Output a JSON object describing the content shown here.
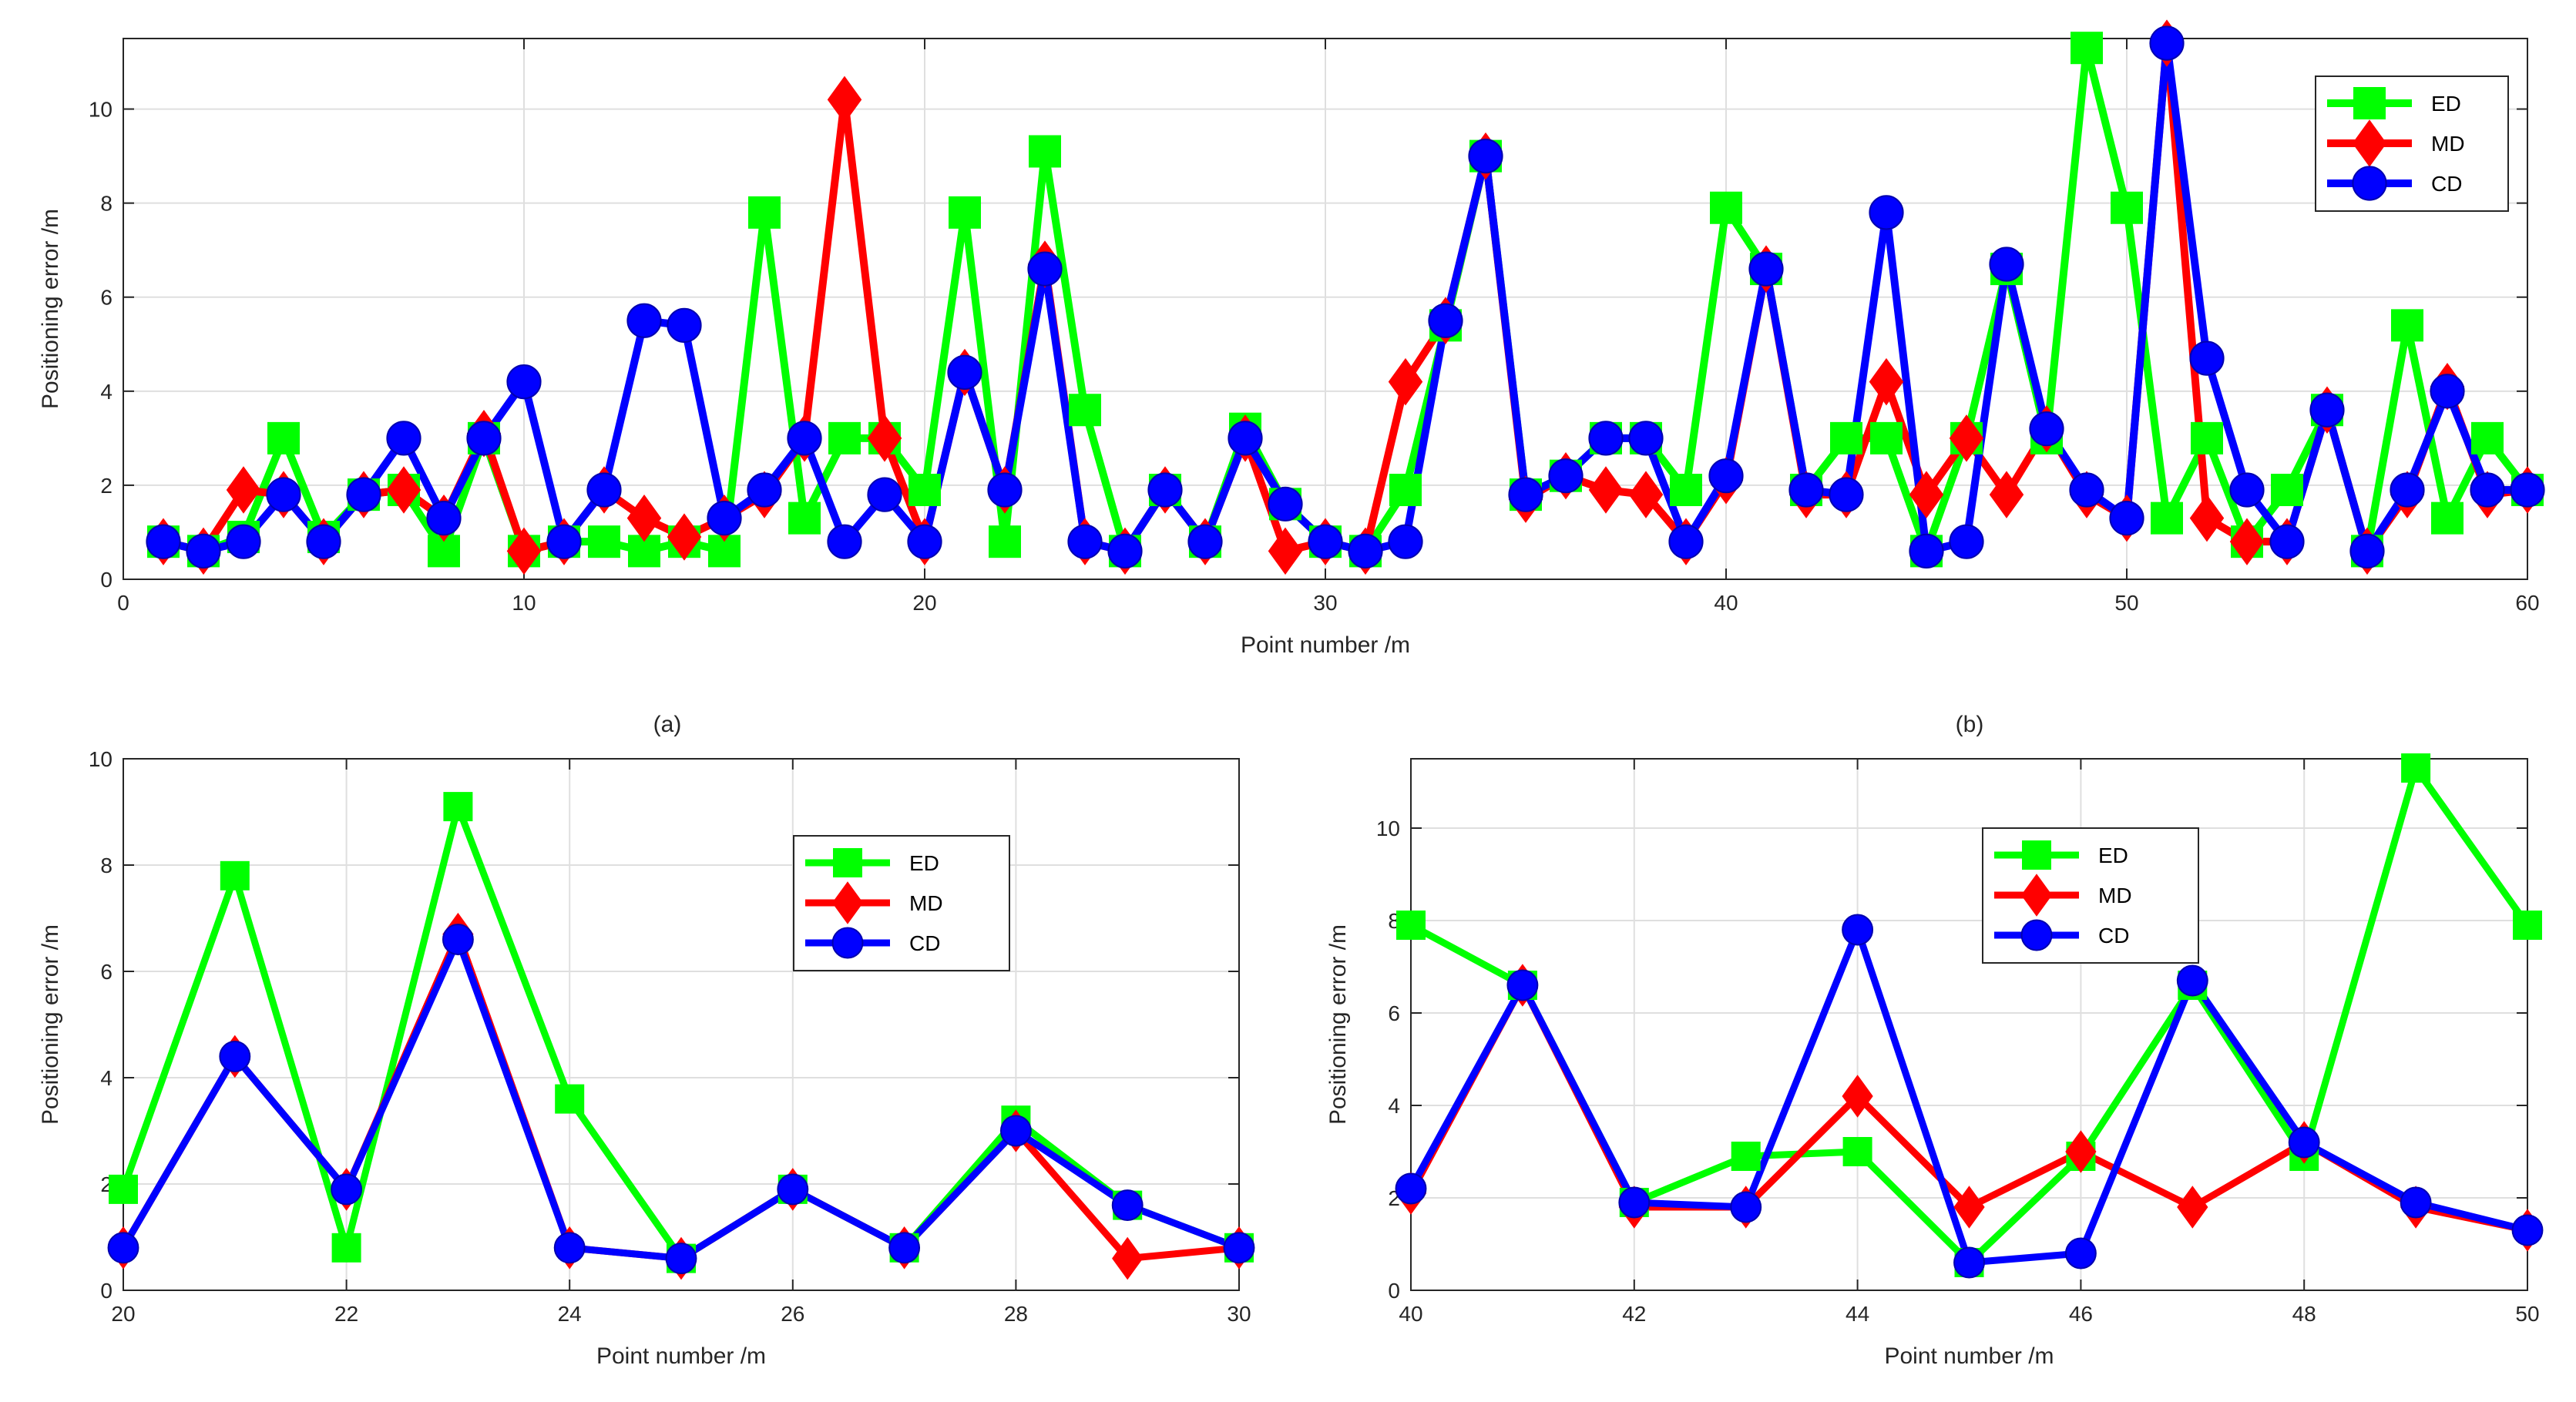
{
  "chart_data": [
    {
      "type": "line",
      "panel": "top",
      "title": "",
      "xlabel": "Point number /m",
      "ylabel": "Positioning error /m",
      "xlim": [
        0,
        60
      ],
      "ylim": [
        0,
        11.5
      ],
      "xticks": [
        0,
        10,
        20,
        30,
        40,
        50,
        60
      ],
      "yticks": [
        0,
        2,
        4,
        6,
        8,
        10
      ],
      "grid": true,
      "legend": "top-right",
      "x": [
        1,
        2,
        3,
        4,
        5,
        6,
        7,
        8,
        9,
        10,
        11,
        12,
        13,
        14,
        15,
        16,
        17,
        18,
        19,
        20,
        21,
        22,
        23,
        24,
        25,
        26,
        27,
        28,
        29,
        30,
        31,
        32,
        33,
        34,
        35,
        36,
        37,
        38,
        39,
        40,
        41,
        42,
        43,
        44,
        45,
        46,
        47,
        48,
        49,
        50,
        51,
        52,
        53,
        54,
        55,
        56,
        57,
        58,
        59,
        60
      ],
      "series": [
        {
          "name": "ED",
          "color": "#00ff00",
          "marker": "square",
          "values": [
            0.8,
            0.6,
            0.9,
            3.0,
            0.9,
            1.8,
            1.9,
            0.6,
            3.0,
            0.6,
            0.8,
            0.8,
            0.6,
            0.8,
            0.6,
            7.8,
            1.3,
            3.0,
            3.0,
            1.9,
            7.8,
            0.8,
            9.1,
            3.6,
            0.6,
            1.9,
            0.8,
            3.2,
            1.6,
            0.8,
            0.6,
            1.9,
            5.4,
            9.0,
            1.8,
            2.2,
            3.0,
            3.0,
            1.9,
            7.9,
            6.6,
            1.9,
            3.0,
            3.0,
            0.6,
            3.0,
            6.6,
            3.0,
            11.3,
            7.9,
            1.3,
            3.0,
            0.8,
            1.9,
            3.6,
            0.6,
            5.4,
            1.3,
            3.0,
            1.9
          ]
        },
        {
          "name": "MD",
          "color": "#ff0000",
          "marker": "diamond",
          "values": [
            0.8,
            0.6,
            1.9,
            1.8,
            0.8,
            1.8,
            1.9,
            1.3,
            3.1,
            0.6,
            0.8,
            1.9,
            1.3,
            0.9,
            1.3,
            1.8,
            3.0,
            10.2,
            3.0,
            0.8,
            4.4,
            1.9,
            6.7,
            0.8,
            0.6,
            1.9,
            0.8,
            3.0,
            0.6,
            0.8,
            0.6,
            4.2,
            5.5,
            9.0,
            1.7,
            2.2,
            1.9,
            1.8,
            0.8,
            2.1,
            6.6,
            1.8,
            1.8,
            4.2,
            1.8,
            3.0,
            1.8,
            3.2,
            1.8,
            1.3,
            11.4,
            1.3,
            0.8,
            0.8,
            3.6,
            0.6,
            1.8,
            4.1,
            1.8,
            1.9
          ]
        },
        {
          "name": "CD",
          "color": "#0000ff",
          "marker": "circle",
          "values": [
            0.8,
            0.6,
            0.8,
            1.8,
            0.8,
            1.8,
            3.0,
            1.3,
            3.0,
            4.2,
            0.8,
            1.9,
            5.5,
            5.4,
            1.3,
            1.9,
            3.0,
            0.8,
            1.8,
            0.8,
            4.4,
            1.9,
            6.6,
            0.8,
            0.6,
            1.9,
            0.8,
            3.0,
            1.6,
            0.8,
            0.6,
            0.8,
            5.5,
            9.0,
            1.8,
            2.2,
            3.0,
            3.0,
            0.8,
            2.2,
            6.6,
            1.9,
            1.8,
            7.8,
            0.6,
            0.8,
            6.7,
            3.2,
            1.9,
            1.3,
            11.4,
            4.7,
            1.9,
            0.8,
            3.6,
            0.6,
            1.9,
            4.0,
            1.9,
            1.9
          ]
        }
      ]
    },
    {
      "type": "line",
      "panel": "bottom-left",
      "caption": "(a)",
      "title": "",
      "xlabel": "Point number /m",
      "ylabel": "Positioning error /m",
      "xlim": [
        20,
        30
      ],
      "ylim": [
        0,
        10
      ],
      "xticks": [
        20,
        22,
        24,
        26,
        28,
        30
      ],
      "yticks": [
        0,
        2,
        4,
        6,
        8,
        10
      ],
      "grid": true,
      "legend": "top-right",
      "x": [
        20,
        21,
        22,
        23,
        24,
        25,
        26,
        27,
        28,
        29,
        30
      ],
      "series": [
        {
          "name": "ED",
          "color": "#00ff00",
          "marker": "square",
          "values": [
            1.9,
            7.8,
            0.8,
            9.1,
            3.6,
            0.6,
            1.9,
            0.8,
            3.2,
            1.6,
            0.8
          ]
        },
        {
          "name": "MD",
          "color": "#ff0000",
          "marker": "diamond",
          "values": [
            0.8,
            4.4,
            1.9,
            6.7,
            0.8,
            0.6,
            1.9,
            0.8,
            3.0,
            0.6,
            0.8
          ]
        },
        {
          "name": "CD",
          "color": "#0000ff",
          "marker": "circle",
          "values": [
            0.8,
            4.4,
            1.9,
            6.6,
            0.8,
            0.6,
            1.9,
            0.8,
            3.0,
            1.6,
            0.8
          ]
        }
      ]
    },
    {
      "type": "line",
      "panel": "bottom-right",
      "caption": "(b)",
      "title": "",
      "xlabel": "Point number /m",
      "ylabel": "Positioning error /m",
      "xlim": [
        40,
        50
      ],
      "ylim": [
        0,
        11.5
      ],
      "xticks": [
        40,
        42,
        44,
        46,
        48,
        50
      ],
      "yticks": [
        0,
        2,
        4,
        6,
        8,
        10
      ],
      "grid": true,
      "legend": "top-center",
      "x": [
        40,
        41,
        42,
        43,
        44,
        45,
        46,
        47,
        48,
        49,
        50
      ],
      "series": [
        {
          "name": "ED",
          "color": "#00ff00",
          "marker": "square",
          "values": [
            7.9,
            6.6,
            1.9,
            2.9,
            3.0,
            0.6,
            2.9,
            6.6,
            2.9,
            11.3,
            7.9
          ]
        },
        {
          "name": "MD",
          "color": "#ff0000",
          "marker": "diamond",
          "values": [
            2.1,
            6.6,
            1.8,
            1.8,
            4.2,
            1.8,
            3.0,
            1.8,
            3.2,
            1.8,
            1.3
          ]
        },
        {
          "name": "CD",
          "color": "#0000ff",
          "marker": "circle",
          "values": [
            2.2,
            6.6,
            1.9,
            1.8,
            7.8,
            0.6,
            0.8,
            6.7,
            3.2,
            1.9,
            1.3
          ]
        }
      ]
    }
  ]
}
